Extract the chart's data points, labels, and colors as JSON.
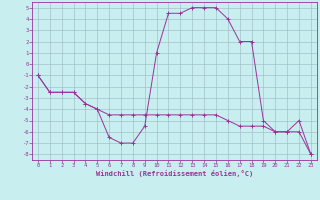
{
  "xlabel": "Windchill (Refroidissement éolien,°C)",
  "bg_color": "#c8eef0",
  "grid_color": "#b0c8d0",
  "line_color": "#993399",
  "xlim": [
    -0.5,
    23.5
  ],
  "ylim": [
    -8.5,
    5.5
  ],
  "xticks": [
    0,
    1,
    2,
    3,
    4,
    5,
    6,
    7,
    8,
    9,
    10,
    11,
    12,
    13,
    14,
    15,
    16,
    17,
    18,
    19,
    20,
    21,
    22,
    23
  ],
  "yticks": [
    5,
    4,
    3,
    2,
    1,
    0,
    -1,
    -2,
    -3,
    -4,
    -5,
    -6,
    -7,
    -8
  ],
  "line1_x": [
    0,
    1,
    2,
    3,
    4,
    5,
    6,
    7,
    8,
    9,
    10,
    11,
    12,
    13,
    14,
    15,
    16,
    17,
    18,
    19,
    20,
    21,
    22,
    23
  ],
  "line1_y": [
    -1,
    -2.5,
    -2.5,
    -2.5,
    -3.5,
    -4,
    -6.5,
    -7,
    -7,
    -5.5,
    1,
    4.5,
    4.5,
    5,
    5,
    5,
    4,
    2,
    2,
    -5,
    -6,
    -6,
    -5,
    -8
  ],
  "line2_x": [
    0,
    1,
    2,
    3,
    4,
    5,
    6,
    7,
    8,
    9,
    10,
    11,
    12,
    13,
    14,
    15,
    16,
    17,
    18,
    19,
    20,
    21,
    22,
    23
  ],
  "line2_y": [
    -1,
    -2.5,
    -2.5,
    -2.5,
    -3.5,
    -4,
    -4.5,
    -4.5,
    -4.5,
    -4.5,
    -4.5,
    -4.5,
    -4.5,
    -4.5,
    -4.5,
    -4.5,
    -5,
    -5.5,
    -5.5,
    -5.5,
    -6,
    -6,
    -6,
    -8
  ]
}
